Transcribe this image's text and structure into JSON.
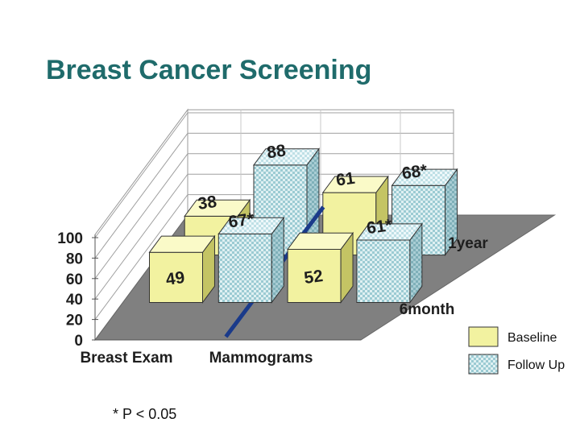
{
  "slide": {
    "title": "Breast Cancer Screening",
    "footnote": "* P < 0.05"
  },
  "chart_data": {
    "type": "bar",
    "title": "Breast Cancer Screening",
    "view": "3d-grouped",
    "categories": [
      "Breast Exam",
      "Mammograms"
    ],
    "depth_rows": [
      "6month",
      "1year"
    ],
    "series": [
      {
        "name": "Baseline",
        "row": "6month",
        "values": [
          49,
          52
        ],
        "labels": [
          "49",
          "52"
        ]
      },
      {
        "name": "Follow Up",
        "row": "6month",
        "values": [
          67,
          61
        ],
        "labels": [
          "67*",
          "61*"
        ]
      },
      {
        "name": "Baseline",
        "row": "1year",
        "values": [
          38,
          61
        ],
        "labels": [
          "38",
          "61"
        ]
      },
      {
        "name": "Follow Up",
        "row": "1year",
        "values": [
          88,
          68
        ],
        "labels": [
          "88",
          "68*"
        ]
      }
    ],
    "ylim": [
      0,
      100
    ],
    "yticks": [
      "0",
      "20",
      "40",
      "60",
      "80",
      "100"
    ],
    "legend": [
      {
        "name": "Baseline",
        "pattern": "solid"
      },
      {
        "name": "Follow Up",
        "pattern": "checker"
      }
    ],
    "legend_position": "bottom-right",
    "colors": {
      "baseline_front": "#f2f2a0",
      "baseline_side": "#c4c464",
      "baseline_top": "#fafac8",
      "follow_front": "#dff0f2",
      "follow_side": "#a9cdd4",
      "follow_top": "#eef8fa",
      "floor": "#808080",
      "divider": "#1a3a8a",
      "title": "#1f6b6b"
    }
  }
}
